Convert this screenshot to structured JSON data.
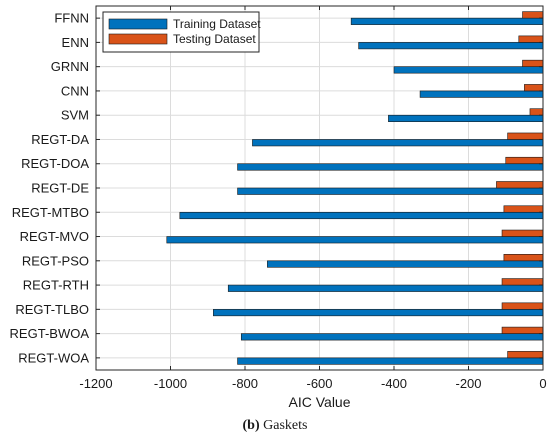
{
  "chart_data": {
    "type": "bar",
    "orientation": "horizontal",
    "categories": [
      "FFNN",
      "ENN",
      "GRNN",
      "CNN",
      "SVM",
      "REGT-DA",
      "REGT-DOA",
      "REGT-DE",
      "REGT-MTBO",
      "REGT-MVO",
      "REGT-PSO",
      "REGT-RTH",
      "REGT-TLBO",
      "REGT-BWOA",
      "REGT-WOA"
    ],
    "series": [
      {
        "name": "Training Dataset",
        "color": "#0072BD",
        "values": [
          -515,
          -495,
          -400,
          -330,
          -415,
          -780,
          -820,
          -820,
          -975,
          -1010,
          -740,
          -845,
          -885,
          -810,
          -820
        ]
      },
      {
        "name": "Testing Dataset",
        "color": "#D95319",
        "values": [
          -55,
          -65,
          -55,
          -50,
          -35,
          -95,
          -100,
          -125,
          -105,
          -110,
          -105,
          -110,
          -110,
          -110,
          -95
        ]
      }
    ],
    "xlabel": "AIC Value",
    "ylabel": "",
    "xlim": [
      -1200,
      0
    ],
    "xticks": [
      -1200,
      -1000,
      -800,
      -600,
      -400,
      -200,
      0
    ],
    "grid": true,
    "legend": "top-left"
  },
  "caption": {
    "label": "(b)",
    "text": " Gaskets"
  }
}
